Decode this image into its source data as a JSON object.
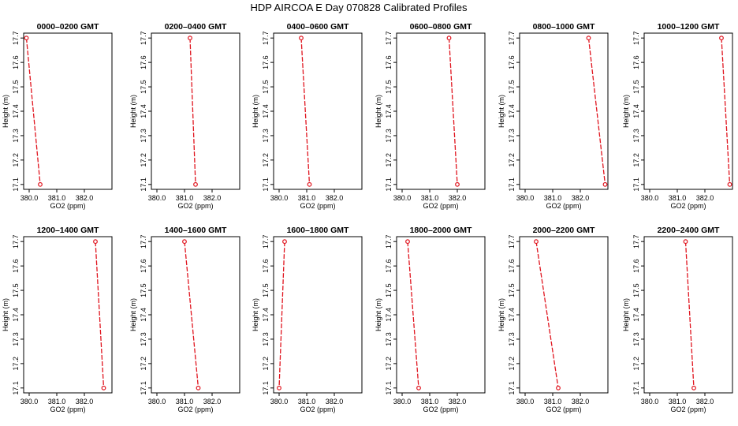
{
  "title": "HDP AIRCOA E  Day 070828  Calibrated Profiles",
  "colors": {
    "series": "#e0141e",
    "axis": "#000000",
    "background": "#ffffff"
  },
  "chart_data": [
    {
      "type": "line",
      "title": "0000–0200 GMT",
      "xlabel": "GO2 (ppm)",
      "ylabel": "Height (m)",
      "x_ticks": [
        "380.0",
        "381.0",
        "382.0"
      ],
      "y_ticks": [
        "17.1",
        "17.2",
        "17.3",
        "17.4",
        "17.5",
        "17.6",
        "17.7"
      ],
      "xlim": [
        379.8,
        383.0
      ],
      "ylim": [
        17.08,
        17.72
      ],
      "points": [
        {
          "x": 379.9,
          "y": 17.7
        },
        {
          "x": 380.4,
          "y": 17.1
        }
      ]
    },
    {
      "type": "line",
      "title": "0200–0400 GMT",
      "xlabel": "GO2 (ppm)",
      "ylabel": "Height (m)",
      "x_ticks": [
        "380.0",
        "381.0",
        "382.0"
      ],
      "y_ticks": [
        "17.1",
        "17.2",
        "17.3",
        "17.4",
        "17.5",
        "17.6",
        "17.7"
      ],
      "xlim": [
        379.8,
        383.0
      ],
      "ylim": [
        17.08,
        17.72
      ],
      "points": [
        {
          "x": 381.2,
          "y": 17.7
        },
        {
          "x": 381.4,
          "y": 17.1
        }
      ]
    },
    {
      "type": "line",
      "title": "0400–0600 GMT",
      "xlabel": "GO2 (ppm)",
      "ylabel": "Height (m)",
      "x_ticks": [
        "380.0",
        "381.0",
        "382.0"
      ],
      "y_ticks": [
        "17.1",
        "17.2",
        "17.3",
        "17.4",
        "17.5",
        "17.6",
        "17.7"
      ],
      "xlim": [
        379.8,
        383.0
      ],
      "ylim": [
        17.08,
        17.72
      ],
      "points": [
        {
          "x": 380.8,
          "y": 17.7
        },
        {
          "x": 381.1,
          "y": 17.1
        }
      ]
    },
    {
      "type": "line",
      "title": "0600–0800 GMT",
      "xlabel": "GO2 (ppm)",
      "ylabel": "Height (m)",
      "x_ticks": [
        "380.0",
        "381.0",
        "382.0"
      ],
      "y_ticks": [
        "17.1",
        "17.2",
        "17.3",
        "17.4",
        "17.5",
        "17.6",
        "17.7"
      ],
      "xlim": [
        379.8,
        383.0
      ],
      "ylim": [
        17.08,
        17.72
      ],
      "points": [
        {
          "x": 381.7,
          "y": 17.7
        },
        {
          "x": 382.0,
          "y": 17.1
        }
      ]
    },
    {
      "type": "line",
      "title": "0800–1000 GMT",
      "xlabel": "GO2 (ppm)",
      "ylabel": "Height (m)",
      "x_ticks": [
        "380.0",
        "381.0",
        "382.0"
      ],
      "y_ticks": [
        "17.1",
        "17.2",
        "17.3",
        "17.4",
        "17.5",
        "17.6",
        "17.7"
      ],
      "xlim": [
        379.8,
        383.0
      ],
      "ylim": [
        17.08,
        17.72
      ],
      "points": [
        {
          "x": 382.3,
          "y": 17.7
        },
        {
          "x": 382.9,
          "y": 17.1
        }
      ]
    },
    {
      "type": "line",
      "title": "1000–1200 GMT",
      "xlabel": "GO2 (ppm)",
      "ylabel": "Height (m)",
      "x_ticks": [
        "380.0",
        "381.0",
        "382.0"
      ],
      "y_ticks": [
        "17.1",
        "17.2",
        "17.3",
        "17.4",
        "17.5",
        "17.6",
        "17.7"
      ],
      "xlim": [
        379.8,
        383.0
      ],
      "ylim": [
        17.08,
        17.72
      ],
      "points": [
        {
          "x": 382.6,
          "y": 17.7
        },
        {
          "x": 382.9,
          "y": 17.1
        }
      ]
    },
    {
      "type": "line",
      "title": "1200–1400 GMT",
      "xlabel": "GO2 (ppm)",
      "ylabel": "Height (m)",
      "x_ticks": [
        "380.0",
        "381.0",
        "382.0"
      ],
      "y_ticks": [
        "17.1",
        "17.2",
        "17.3",
        "17.4",
        "17.5",
        "17.6",
        "17.7"
      ],
      "xlim": [
        379.8,
        383.0
      ],
      "ylim": [
        17.08,
        17.72
      ],
      "points": [
        {
          "x": 382.4,
          "y": 17.7
        },
        {
          "x": 382.7,
          "y": 17.1
        }
      ]
    },
    {
      "type": "line",
      "title": "1400–1600 GMT",
      "xlabel": "GO2 (ppm)",
      "ylabel": "Height (m)",
      "x_ticks": [
        "380.0",
        "381.0",
        "382.0"
      ],
      "y_ticks": [
        "17.1",
        "17.2",
        "17.3",
        "17.4",
        "17.5",
        "17.6",
        "17.7"
      ],
      "xlim": [
        379.8,
        383.0
      ],
      "ylim": [
        17.08,
        17.72
      ],
      "points": [
        {
          "x": 381.0,
          "y": 17.7
        },
        {
          "x": 381.5,
          "y": 17.1
        }
      ]
    },
    {
      "type": "line",
      "title": "1600–1800 GMT",
      "xlabel": "GO2 (ppm)",
      "ylabel": "Height (m)",
      "x_ticks": [
        "380.0",
        "381.0",
        "382.0"
      ],
      "y_ticks": [
        "17.1",
        "17.2",
        "17.3",
        "17.4",
        "17.5",
        "17.6",
        "17.7"
      ],
      "xlim": [
        379.8,
        383.0
      ],
      "ylim": [
        17.08,
        17.72
      ],
      "points": [
        {
          "x": 380.2,
          "y": 17.7
        },
        {
          "x": 380.0,
          "y": 17.1
        }
      ]
    },
    {
      "type": "line",
      "title": "1800–2000 GMT",
      "xlabel": "GO2 (ppm)",
      "ylabel": "Height (m)",
      "x_ticks": [
        "380.0",
        "381.0",
        "382.0"
      ],
      "y_ticks": [
        "17.1",
        "17.2",
        "17.3",
        "17.4",
        "17.5",
        "17.6",
        "17.7"
      ],
      "xlim": [
        379.8,
        383.0
      ],
      "ylim": [
        17.08,
        17.72
      ],
      "points": [
        {
          "x": 380.2,
          "y": 17.7
        },
        {
          "x": 380.6,
          "y": 17.1
        }
      ]
    },
    {
      "type": "line",
      "title": "2000–2200 GMT",
      "xlabel": "GO2 (ppm)",
      "ylabel": "Height (m)",
      "x_ticks": [
        "380.0",
        "381.0",
        "382.0"
      ],
      "y_ticks": [
        "17.1",
        "17.2",
        "17.3",
        "17.4",
        "17.5",
        "17.6",
        "17.7"
      ],
      "xlim": [
        379.8,
        383.0
      ],
      "ylim": [
        17.08,
        17.72
      ],
      "points": [
        {
          "x": 380.4,
          "y": 17.7
        },
        {
          "x": 381.2,
          "y": 17.1
        }
      ]
    },
    {
      "type": "line",
      "title": "2200–2400 GMT",
      "xlabel": "GO2 (ppm)",
      "ylabel": "Height (m)",
      "x_ticks": [
        "380.0",
        "381.0",
        "382.0"
      ],
      "y_ticks": [
        "17.1",
        "17.2",
        "17.3",
        "17.4",
        "17.5",
        "17.6",
        "17.7"
      ],
      "xlim": [
        379.8,
        383.0
      ],
      "ylim": [
        17.08,
        17.72
      ],
      "points": [
        {
          "x": 381.3,
          "y": 17.7
        },
        {
          "x": 381.6,
          "y": 17.1
        }
      ]
    }
  ]
}
